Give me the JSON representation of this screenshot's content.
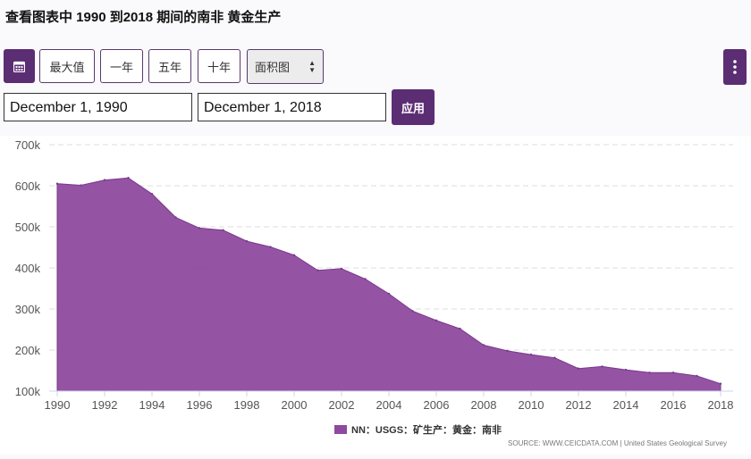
{
  "page": {
    "title": "查看图表中 1990 到2018 期间的南非 黄金生产"
  },
  "controls": {
    "calendar_icon": "calendar-icon",
    "max_label": "最大值",
    "one_year_label": "一年",
    "five_year_label": "五年",
    "ten_year_label": "十年",
    "chart_type_value": "面积图",
    "menu_icon": "vertical-dots-icon",
    "start_date": "December 1, 1990",
    "end_date": "December 1, 2018",
    "apply_label": "应用",
    "accent_color": "#5b2d73"
  },
  "chart_data": {
    "type": "area",
    "x": [
      1990,
      1991,
      1992,
      1993,
      1994,
      1995,
      1996,
      1997,
      1998,
      1999,
      2000,
      2001,
      2002,
      2003,
      2004,
      2005,
      2006,
      2007,
      2008,
      2009,
      2010,
      2011,
      2012,
      2013,
      2014,
      2015,
      2016,
      2017,
      2018
    ],
    "series": [
      {
        "name": "NN：USGS：矿生产：黄金：南非",
        "color": "#8e4a9e",
        "values": [
          605000,
          601000,
          614000,
          619000,
          580000,
          523000,
          497000,
          492000,
          465000,
          451000,
          431000,
          394000,
          398000,
          373000,
          337000,
          295000,
          272000,
          252000,
          212000,
          198000,
          189000,
          181000,
          155000,
          160000,
          152000,
          145000,
          145000,
          137000,
          118000
        ]
      }
    ],
    "ylim": [
      100000,
      700000
    ],
    "y_ticks": [
      "100k",
      "200k",
      "300k",
      "400k",
      "500k",
      "600k",
      "700k"
    ],
    "x_ticks": [
      "1990",
      "1992",
      "1994",
      "1996",
      "1998",
      "2000",
      "2002",
      "2004",
      "2006",
      "2008",
      "2010",
      "2012",
      "2014",
      "2016",
      "2018"
    ],
    "grid": true,
    "legend_position": "bottom-center",
    "source": "SOURCE: WWW.CEICDATA.COM | United States Geological Survey"
  }
}
